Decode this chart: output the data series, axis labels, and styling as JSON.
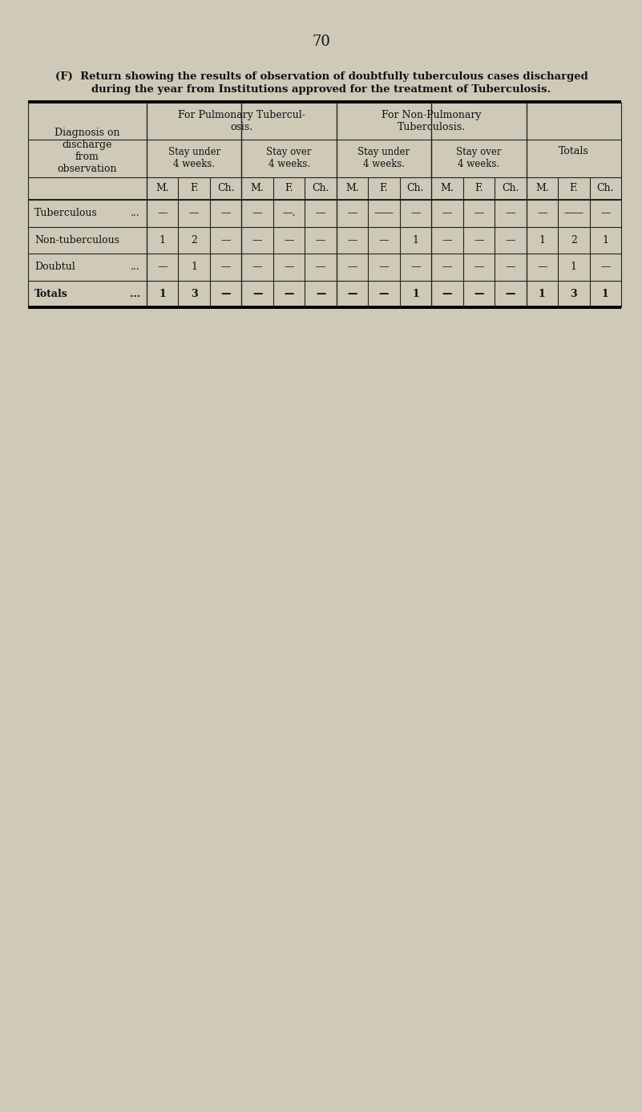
{
  "page_number": "70",
  "title_line1": "(F)  Return showing the results of observation of doubtfully tuberculous cases discharged",
  "title_line2": "during the year from Institutions approved for the treatment of Tuberculosis.",
  "bg_color": "#cfc9b8",
  "paper_color": "#d8d2c0",
  "table_bg": "#ddd8c8",
  "col_header_row1_pulm": "For Pulmonary Tubercul-\nosis.",
  "col_header_row1_nonpulm": "For Non-Pulmonary\nTuberculosis.",
  "col_header_totals": "Totals",
  "stay_under": "Stay under\n4 weeks.",
  "stay_over": "Stay over\n4 weeks.",
  "mfc": [
    "M.",
    "F.",
    "Ch.",
    "M.",
    "F.",
    "Ch.",
    "M.",
    "F.",
    "Ch.",
    "M.",
    "F.",
    "Ch.",
    "M.",
    "F.",
    "Ch."
  ],
  "diag_label": "Diagnosis on\ndischarge\nfrom\nobservation",
  "row_labels": [
    "Tuberculous",
    "Non-tuberculous",
    "Doubtul",
    "Totals"
  ],
  "row_dots": [
    "...",
    "",
    "...",
    "..."
  ],
  "row_bold": [
    false,
    false,
    false,
    true
  ],
  "data_rows": {
    "Tuberculous": [
      "—",
      "—",
      "—",
      "—",
      "—.",
      "—",
      "—",
      "——",
      "—",
      "—",
      "—",
      "—",
      "—",
      "——",
      "—"
    ],
    "Non-tuberculous": [
      "1",
      "2",
      "—",
      "—",
      "—",
      "—",
      "—",
      "—",
      "1",
      "—",
      "—",
      "—",
      "1",
      "2",
      "1"
    ],
    "Doubtul": [
      "—",
      "1",
      "—",
      "—",
      "—",
      "—",
      "—",
      "—",
      "—",
      "—",
      "—",
      "—",
      "—",
      "1",
      "—"
    ],
    "Totals": [
      "1",
      "3",
      "—",
      "—",
      "—",
      "—",
      "—",
      "—",
      "1",
      "—",
      "—",
      "—",
      "1",
      "3",
      "1"
    ]
  }
}
